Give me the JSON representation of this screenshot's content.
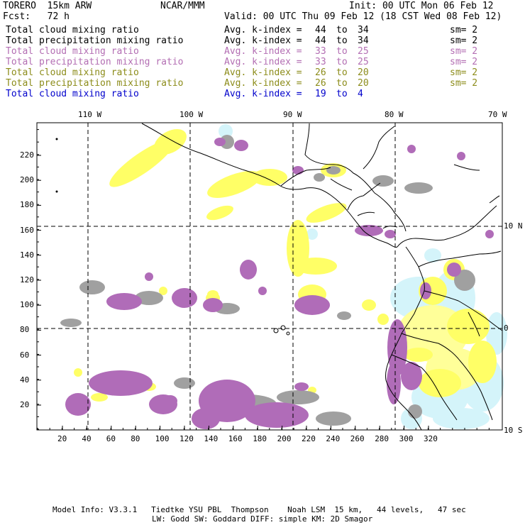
{
  "header": {
    "model": "TORERO  15km ARW",
    "org": "NCAR/MMM",
    "init": "Init: 00 UTC Mon 06 Feb 12",
    "fcst": "Fcst:   72 h",
    "valid": "Valid: 00 UTC Thu 09 Feb 12 (18 CST Wed 08 Feb 12)"
  },
  "legend": [
    {
      "field": "Total cloud mixing ratio",
      "avg": "Avg. k-index =",
      "from": "44",
      "to_word": "to",
      "to": "34",
      "sm": "sm= 2",
      "color": "#000000"
    },
    {
      "field": "Total precipitation mixing ratio",
      "avg": "Avg. k-index =",
      "from": "44",
      "to_word": "to",
      "to": "34",
      "sm": "sm= 2",
      "color": "#000000"
    },
    {
      "field": "Total cloud mixing ratio",
      "avg": "Avg. k-index =",
      "from": "33",
      "to_word": "to",
      "to": "25",
      "sm": "sm= 2",
      "color": "#b36eb3"
    },
    {
      "field": "Total precipitation mixing ratio",
      "avg": "Avg. k-index =",
      "from": "33",
      "to_word": "to",
      "to": "25",
      "sm": "sm= 2",
      "color": "#b36eb3"
    },
    {
      "field": "Total cloud mixing ratio",
      "avg": "Avg. k-index =",
      "from": "26",
      "to_word": "to",
      "to": "20",
      "sm": "sm= 2",
      "color": "#8c8c1a"
    },
    {
      "field": "Total precipitation mixing ratio",
      "avg": "Avg. k-index =",
      "from": "26",
      "to_word": "to",
      "to": "20",
      "sm": "sm= 2",
      "color": "#8c8c1a"
    },
    {
      "field": "Total cloud mixing ratio",
      "avg": "Avg. k-index =",
      "from": "19",
      "to_word": "to",
      "to": "4",
      "sm": "",
      "color": "#0000cc"
    }
  ],
  "lon_labels": [
    "110 W",
    "100 W",
    "90 W",
    "80 W",
    "70 W"
  ],
  "lat_labels": [
    "10 N",
    "0",
    "10 S"
  ],
  "x_ticks": [
    "20",
    "40",
    "60",
    "80",
    "100",
    "120",
    "140",
    "160",
    "180",
    "200",
    "220",
    "240",
    "260",
    "280",
    "300",
    "320"
  ],
  "y_ticks": [
    "20",
    "40",
    "60",
    "80",
    "100",
    "120",
    "140",
    "160",
    "180",
    "200",
    "220"
  ],
  "footer": {
    "line1": "Model Info: V3.3.1   Tiedtke YSU PBL  Thompson    Noah LSM  15 km,   44 levels,   47 sec",
    "line2": "LW: Godd SW: Goddard DIFF: simple KM: 2D Smagor"
  },
  "colors": {
    "gray": "#a0a0a0",
    "purple": "#b06cb8",
    "yellow": "#ffff66",
    "paleyellow": "#ffff99",
    "cyan": "#d4f4fa",
    "coast": "#000000"
  }
}
